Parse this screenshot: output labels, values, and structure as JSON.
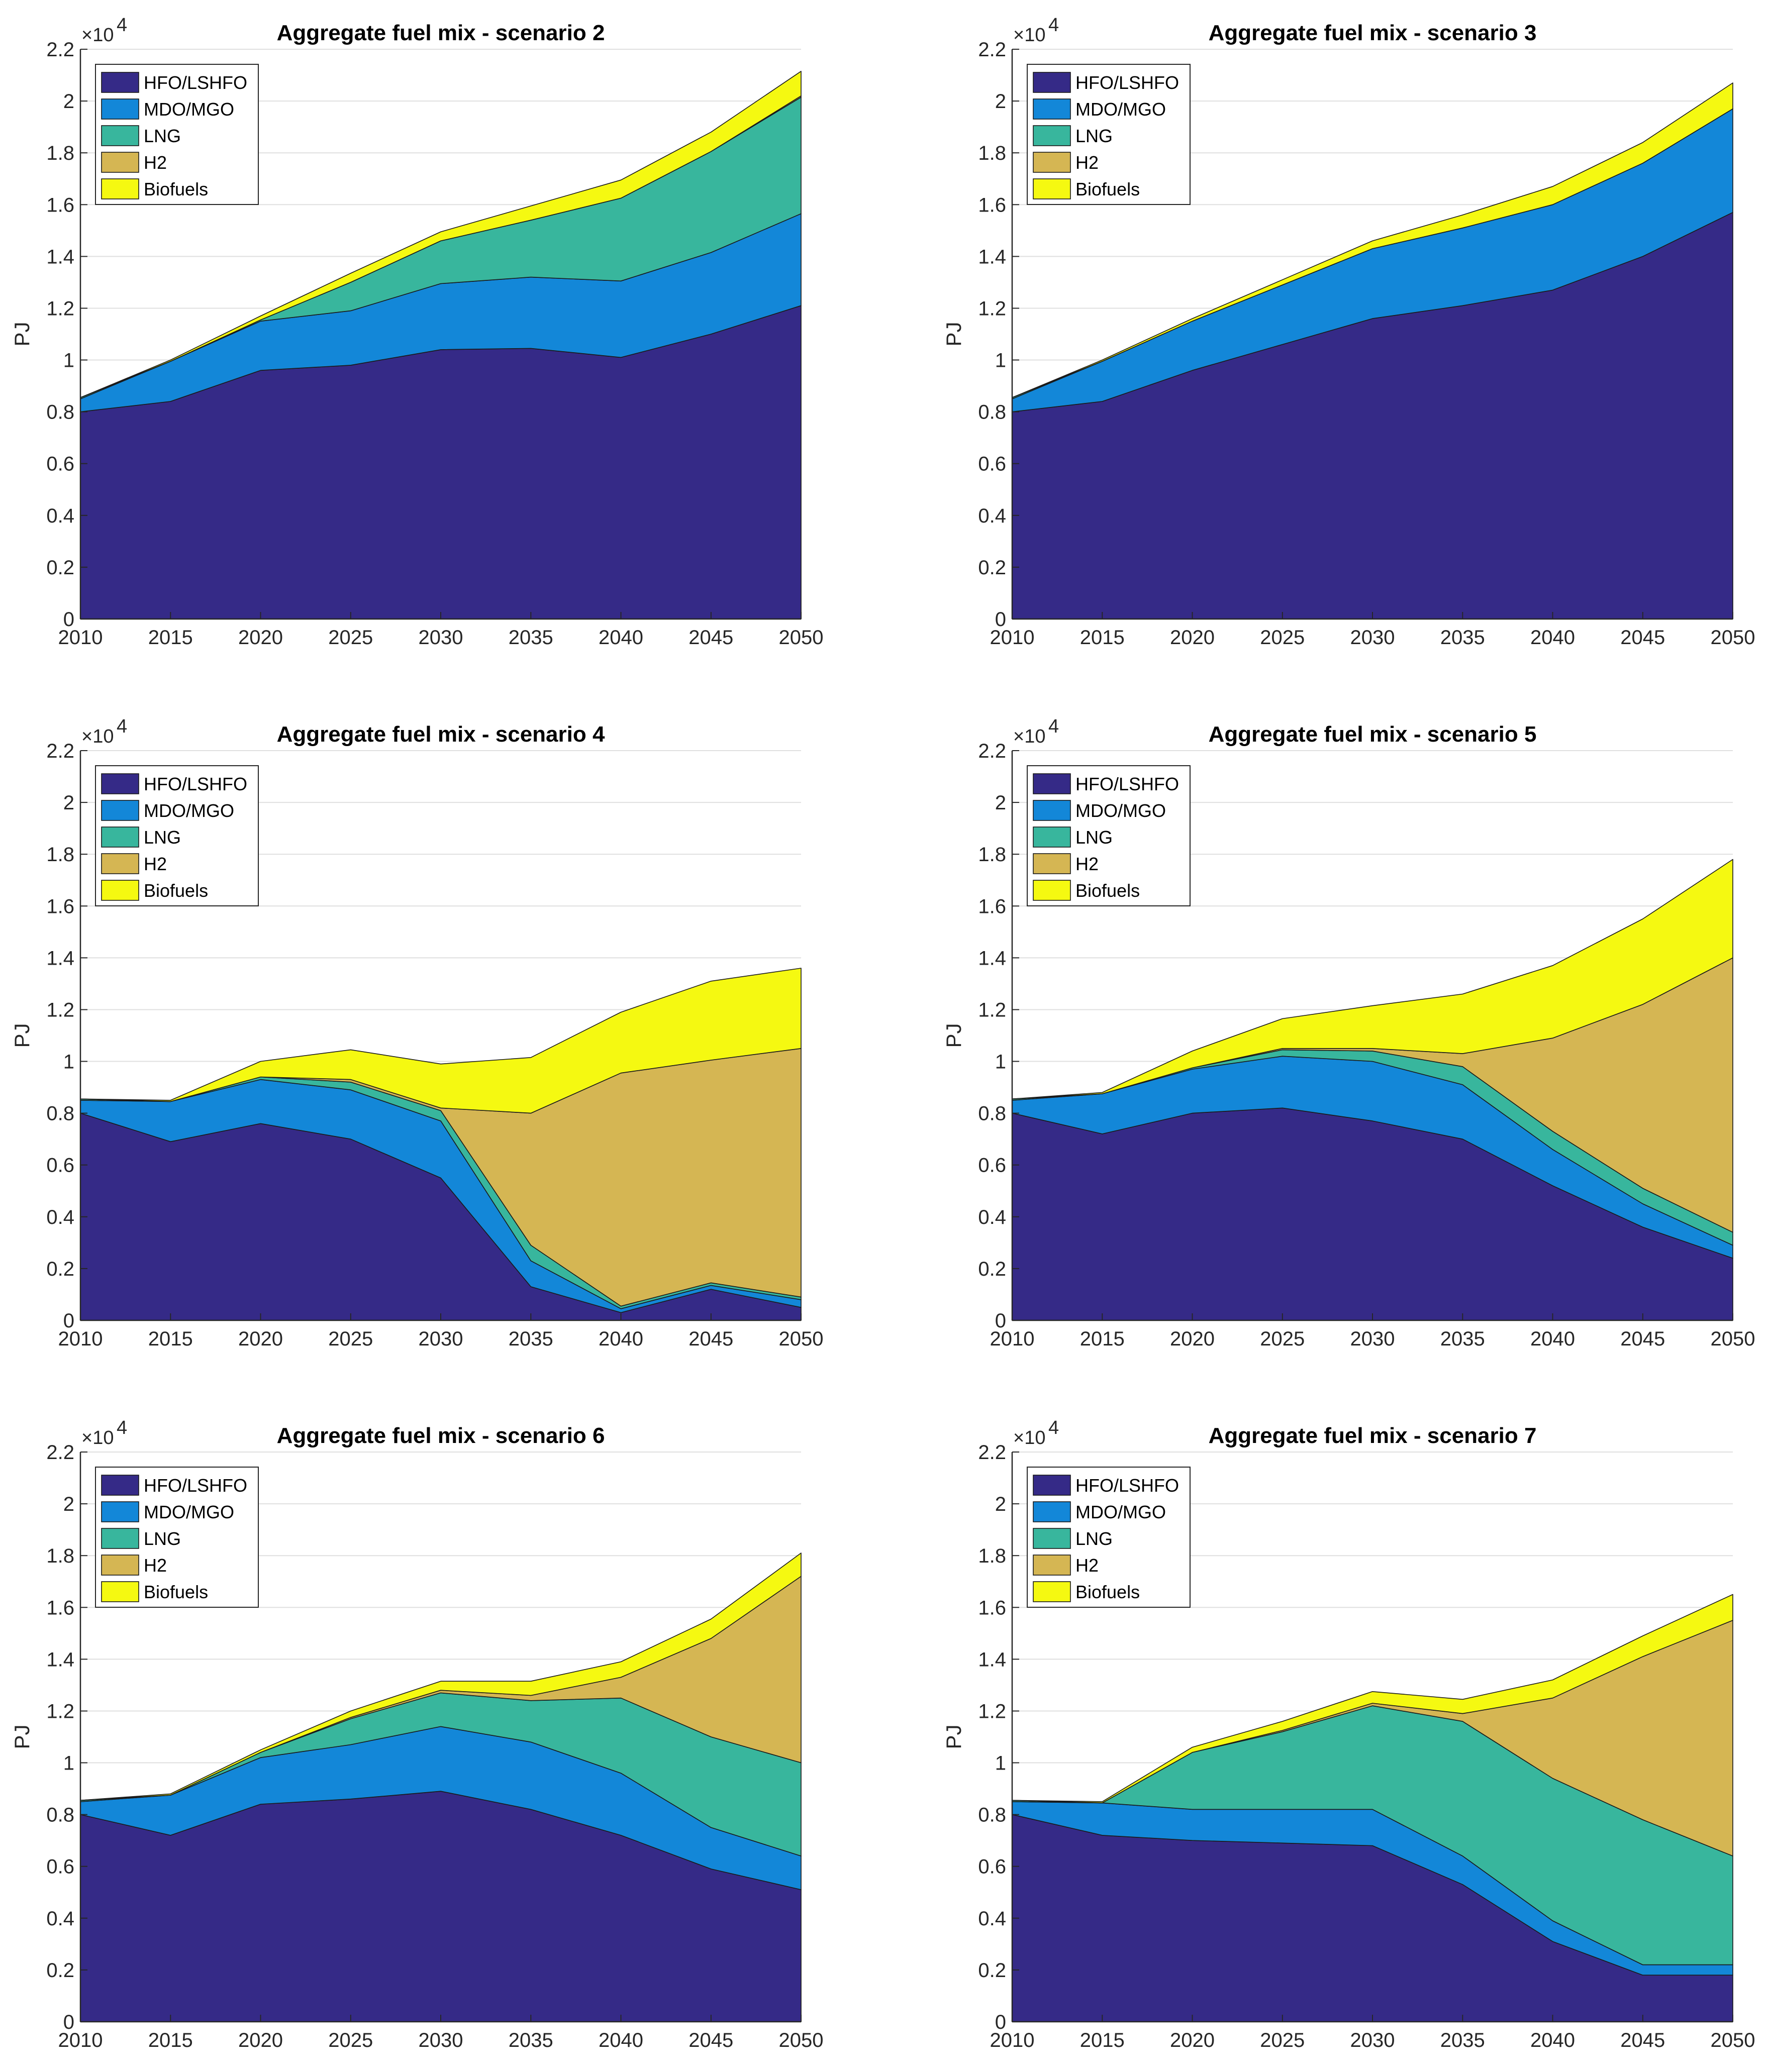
{
  "colors": {
    "HFO/LSHFO": "#352a87",
    "MDO/MGO": "#1387d8",
    "LNG": "#38b69d",
    "H2": "#d5b653",
    "Biofuels": "#f5f911"
  },
  "chart_data": [
    {
      "type": "area",
      "title": "Aggregate fuel mix - scenario 2",
      "xlabel": "",
      "ylabel": "PJ",
      "exponent_label": "×10",
      "exponent_power": "4",
      "x": [
        "2010",
        "2015",
        "2020",
        "2025",
        "2030",
        "2035",
        "2040",
        "2045",
        "2050"
      ],
      "ylim": [
        0,
        2.2
      ],
      "yticks": [
        "0",
        "0.2",
        "0.4",
        "0.6",
        "0.8",
        "1",
        "1.2",
        "1.4",
        "1.6",
        "1.8",
        "2",
        "2.2"
      ],
      "legend": [
        "HFO/LSHFO",
        "MDO/MGO",
        "LNG",
        "H2",
        "Biofuels"
      ],
      "legend_position": "top-left",
      "series": [
        {
          "name": "HFO/LSHFO",
          "values": [
            0.8,
            0.84,
            0.96,
            0.98,
            1.04,
            1.045,
            1.01,
            1.1,
            1.21
          ]
        },
        {
          "name": "MDO/MGO",
          "values": [
            0.05,
            0.155,
            0.19,
            0.21,
            0.255,
            0.275,
            0.295,
            0.315,
            0.355
          ]
        },
        {
          "name": "LNG",
          "values": [
            0.005,
            0,
            0.005,
            0.11,
            0.165,
            0.22,
            0.32,
            0.39,
            0.45
          ]
        },
        {
          "name": "H2",
          "values": [
            0,
            0,
            0,
            0,
            0,
            0,
            0,
            0,
            0.005
          ]
        },
        {
          "name": "Biofuels",
          "values": [
            0,
            0.005,
            0.015,
            0.035,
            0.035,
            0.055,
            0.07,
            0.075,
            0.095
          ]
        }
      ]
    },
    {
      "type": "area",
      "title": "Aggregate fuel mix - scenario 3",
      "xlabel": "",
      "ylabel": "PJ",
      "exponent_label": "×10",
      "exponent_power": "4",
      "x": [
        "2010",
        "2015",
        "2020",
        "2025",
        "2030",
        "2035",
        "2040",
        "2045",
        "2050"
      ],
      "ylim": [
        0,
        2.2
      ],
      "yticks": [
        "0",
        "0.2",
        "0.4",
        "0.6",
        "0.8",
        "1",
        "1.2",
        "1.4",
        "1.6",
        "1.8",
        "2",
        "2.2"
      ],
      "legend": [
        "HFO/LSHFO",
        "MDO/MGO",
        "LNG",
        "H2",
        "Biofuels"
      ],
      "legend_position": "top-left",
      "series": [
        {
          "name": "HFO/LSHFO",
          "values": [
            0.8,
            0.84,
            0.96,
            1.06,
            1.16,
            1.21,
            1.27,
            1.4,
            1.57
          ]
        },
        {
          "name": "MDO/MGO",
          "values": [
            0.05,
            0.155,
            0.19,
            0.23,
            0.27,
            0.3,
            0.33,
            0.36,
            0.4
          ]
        },
        {
          "name": "LNG",
          "values": [
            0.005,
            0,
            0,
            0,
            0,
            0,
            0,
            0,
            0
          ]
        },
        {
          "name": "H2",
          "values": [
            0,
            0,
            0,
            0,
            0,
            0,
            0,
            0,
            0
          ]
        },
        {
          "name": "Biofuels",
          "values": [
            0,
            0.005,
            0.01,
            0.02,
            0.03,
            0.05,
            0.07,
            0.08,
            0.1
          ]
        }
      ]
    },
    {
      "type": "area",
      "title": "Aggregate fuel mix - scenario 4",
      "xlabel": "",
      "ylabel": "PJ",
      "exponent_label": "×10",
      "exponent_power": "4",
      "x": [
        "2010",
        "2015",
        "2020",
        "2025",
        "2030",
        "2035",
        "2040",
        "2045",
        "2050"
      ],
      "ylim": [
        0,
        2.2
      ],
      "yticks": [
        "0",
        "0.2",
        "0.4",
        "0.6",
        "0.8",
        "1",
        "1.2",
        "1.4",
        "1.6",
        "1.8",
        "2",
        "2.2"
      ],
      "legend": [
        "HFO/LSHFO",
        "MDO/MGO",
        "LNG",
        "H2",
        "Biofuels"
      ],
      "legend_position": "top-left",
      "series": [
        {
          "name": "HFO/LSHFO",
          "values": [
            0.8,
            0.69,
            0.76,
            0.7,
            0.55,
            0.13,
            0.03,
            0.12,
            0.05
          ]
        },
        {
          "name": "MDO/MGO",
          "values": [
            0.05,
            0.155,
            0.17,
            0.19,
            0.22,
            0.1,
            0.015,
            0.015,
            0.03
          ]
        },
        {
          "name": "LNG",
          "values": [
            0.005,
            0,
            0.01,
            0.03,
            0.04,
            0.06,
            0.01,
            0.01,
            0.01
          ]
        },
        {
          "name": "H2",
          "values": [
            0,
            0,
            0,
            0.01,
            0.01,
            0.51,
            0.9,
            0.86,
            0.96
          ]
        },
        {
          "name": "Biofuels",
          "values": [
            0,
            0.005,
            0.06,
            0.115,
            0.17,
            0.215,
            0.235,
            0.305,
            0.31
          ]
        }
      ]
    },
    {
      "type": "area",
      "title": "Aggregate fuel mix - scenario 5",
      "xlabel": "",
      "ylabel": "PJ",
      "exponent_label": "×10",
      "exponent_power": "4",
      "x": [
        "2010",
        "2015",
        "2020",
        "2025",
        "2030",
        "2035",
        "2040",
        "2045",
        "2050"
      ],
      "ylim": [
        0,
        2.2
      ],
      "yticks": [
        "0",
        "0.2",
        "0.4",
        "0.6",
        "0.8",
        "1",
        "1.2",
        "1.4",
        "1.6",
        "1.8",
        "2",
        "2.2"
      ],
      "legend": [
        "HFO/LSHFO",
        "MDO/MGO",
        "LNG",
        "H2",
        "Biofuels"
      ],
      "legend_position": "top-left",
      "series": [
        {
          "name": "HFO/LSHFO",
          "values": [
            0.8,
            0.72,
            0.8,
            0.82,
            0.77,
            0.7,
            0.52,
            0.36,
            0.24
          ]
        },
        {
          "name": "MDO/MGO",
          "values": [
            0.05,
            0.155,
            0.17,
            0.2,
            0.23,
            0.21,
            0.14,
            0.09,
            0.05
          ]
        },
        {
          "name": "LNG",
          "values": [
            0.005,
            0,
            0.005,
            0.025,
            0.04,
            0.07,
            0.07,
            0.06,
            0.05
          ]
        },
        {
          "name": "H2",
          "values": [
            0,
            0,
            0,
            0.005,
            0.01,
            0.05,
            0.36,
            0.71,
            1.06
          ]
        },
        {
          "name": "Biofuels",
          "values": [
            0,
            0.005,
            0.065,
            0.115,
            0.165,
            0.23,
            0.28,
            0.33,
            0.38
          ]
        }
      ]
    },
    {
      "type": "area",
      "title": "Aggregate fuel mix - scenario 6",
      "xlabel": "",
      "ylabel": "PJ",
      "exponent_label": "×10",
      "exponent_power": "4",
      "x": [
        "2010",
        "2015",
        "2020",
        "2025",
        "2030",
        "2035",
        "2040",
        "2045",
        "2050"
      ],
      "ylim": [
        0,
        2.2
      ],
      "yticks": [
        "0",
        "0.2",
        "0.4",
        "0.6",
        "0.8",
        "1",
        "1.2",
        "1.4",
        "1.6",
        "1.8",
        "2",
        "2.2"
      ],
      "legend": [
        "HFO/LSHFO",
        "MDO/MGO",
        "LNG",
        "H2",
        "Biofuels"
      ],
      "legend_position": "top-left",
      "series": [
        {
          "name": "HFO/LSHFO",
          "values": [
            0.8,
            0.72,
            0.84,
            0.86,
            0.89,
            0.82,
            0.72,
            0.59,
            0.51
          ]
        },
        {
          "name": "MDO/MGO",
          "values": [
            0.05,
            0.155,
            0.18,
            0.21,
            0.25,
            0.26,
            0.24,
            0.16,
            0.13
          ]
        },
        {
          "name": "LNG",
          "values": [
            0.005,
            0,
            0.02,
            0.1,
            0.13,
            0.16,
            0.29,
            0.35,
            0.36
          ]
        },
        {
          "name": "H2",
          "values": [
            0,
            0,
            0,
            0.005,
            0.01,
            0.02,
            0.08,
            0.38,
            0.72
          ]
        },
        {
          "name": "Biofuels",
          "values": [
            0,
            0.005,
            0.01,
            0.025,
            0.035,
            0.055,
            0.06,
            0.075,
            0.09
          ]
        }
      ]
    },
    {
      "type": "area",
      "title": "Aggregate fuel mix - scenario 7",
      "xlabel": "",
      "ylabel": "PJ",
      "exponent_label": "×10",
      "exponent_power": "4",
      "x": [
        "2010",
        "2015",
        "2020",
        "2025",
        "2030",
        "2035",
        "2040",
        "2045",
        "2050"
      ],
      "ylim": [
        0,
        2.2
      ],
      "yticks": [
        "0",
        "0.2",
        "0.4",
        "0.6",
        "0.8",
        "1",
        "1.2",
        "1.4",
        "1.6",
        "1.8",
        "2",
        "2.2"
      ],
      "legend": [
        "HFO/LSHFO",
        "MDO/MGO",
        "LNG",
        "H2",
        "Biofuels"
      ],
      "legend_position": "top-left",
      "series": [
        {
          "name": "HFO/LSHFO",
          "values": [
            0.8,
            0.72,
            0.7,
            0.69,
            0.68,
            0.53,
            0.31,
            0.18,
            0.18
          ]
        },
        {
          "name": "MDO/MGO",
          "values": [
            0.05,
            0.125,
            0.12,
            0.13,
            0.14,
            0.11,
            0.08,
            0.04,
            0.04
          ]
        },
        {
          "name": "LNG",
          "values": [
            0.005,
            0,
            0.22,
            0.3,
            0.4,
            0.52,
            0.55,
            0.56,
            0.42
          ]
        },
        {
          "name": "H2",
          "values": [
            0,
            0,
            0,
            0.005,
            0.01,
            0.03,
            0.31,
            0.63,
            0.91
          ]
        },
        {
          "name": "Biofuels",
          "values": [
            0,
            0.005,
            0.02,
            0.035,
            0.045,
            0.055,
            0.07,
            0.08,
            0.1
          ]
        }
      ]
    }
  ]
}
